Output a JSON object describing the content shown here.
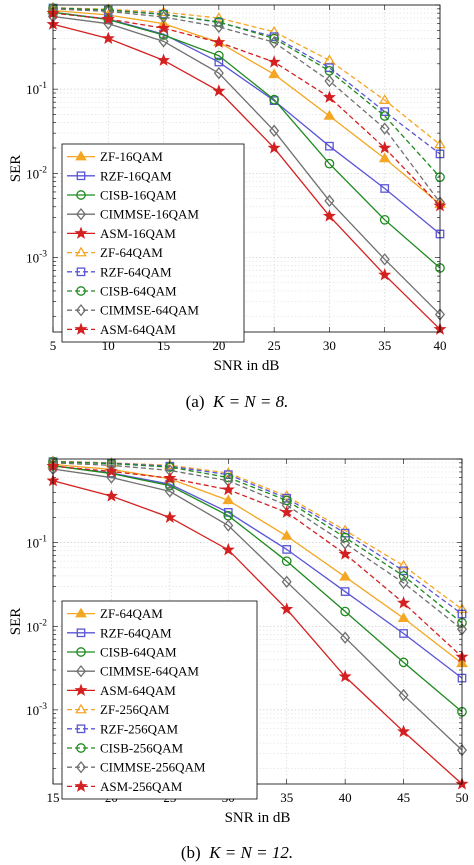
{
  "chart_data": [
    {
      "type": "line",
      "yscale": "log",
      "xlabel": "SNR in dB",
      "ylabel": "SER",
      "x": [
        5,
        10,
        15,
        20,
        25,
        30,
        35,
        40
      ],
      "xlim": [
        5,
        40
      ],
      "ylim": [
        0.00013,
        1
      ],
      "xticks": [
        "5",
        "10",
        "15",
        "20",
        "25",
        "30",
        "35",
        "40"
      ],
      "yticks": [
        {
          "v": 0.1,
          "base": "10",
          "exp": "-1"
        },
        {
          "v": 0.01,
          "base": "10",
          "exp": "-2"
        },
        {
          "v": 0.001,
          "base": "10",
          "exp": "-3"
        }
      ],
      "grid": true,
      "legend_position": "lower-left",
      "caption": {
        "label": "(a)",
        "math": "K = N = 8."
      },
      "series": [
        {
          "name": "ZF-16QAM",
          "color": "#f5a623",
          "dash": false,
          "marker": "triangle",
          "values": [
            0.86,
            0.76,
            0.6,
            0.36,
            0.15,
            0.048,
            0.015,
            0.0043
          ]
        },
        {
          "name": "RZF-16QAM",
          "color": "#5a55d6",
          "dash": false,
          "marker": "square",
          "values": [
            0.82,
            0.68,
            0.45,
            0.21,
            0.073,
            0.021,
            0.0066,
            0.0019
          ]
        },
        {
          "name": "CISB-16QAM",
          "color": "#1e8a1e",
          "dash": false,
          "marker": "circle",
          "values": [
            0.82,
            0.67,
            0.44,
            0.25,
            0.075,
            0.013,
            0.0028,
            0.00075
          ]
        },
        {
          "name": "CIMMSE-16QAM",
          "color": "#707070",
          "dash": false,
          "marker": "diamond",
          "values": [
            0.73,
            0.6,
            0.37,
            0.155,
            0.032,
            0.0047,
            0.00095,
            0.00021
          ]
        },
        {
          "name": "ASM-16QAM",
          "color": "#d42020",
          "dash": false,
          "marker": "star",
          "values": [
            0.59,
            0.4,
            0.22,
            0.095,
            0.02,
            0.0031,
            0.00062,
            0.00014
          ]
        },
        {
          "name": "ZF-64QAM",
          "color": "#f5a623",
          "dash": true,
          "marker": "triangle",
          "values": [
            0.93,
            0.89,
            0.82,
            0.7,
            0.48,
            0.22,
            0.074,
            0.022
          ]
        },
        {
          "name": "RZF-64QAM",
          "color": "#5a55d6",
          "dash": true,
          "marker": "square",
          "values": [
            0.92,
            0.87,
            0.78,
            0.62,
            0.42,
            0.18,
            0.054,
            0.017
          ]
        },
        {
          "name": "CISB-64QAM",
          "color": "#1e8a1e",
          "dash": true,
          "marker": "circle",
          "values": [
            0.92,
            0.87,
            0.77,
            0.63,
            0.4,
            0.165,
            0.048,
            0.009
          ]
        },
        {
          "name": "CIMMSE-64QAM",
          "color": "#707070",
          "dash": true,
          "marker": "diamond",
          "values": [
            0.9,
            0.84,
            0.72,
            0.55,
            0.36,
            0.125,
            0.034,
            0.0045
          ]
        },
        {
          "name": "ASM-64QAM",
          "color": "#d42020",
          "dash": true,
          "marker": "star",
          "values": [
            0.8,
            0.68,
            0.53,
            0.36,
            0.21,
            0.08,
            0.02,
            0.0041
          ]
        }
      ]
    },
    {
      "type": "line",
      "yscale": "log",
      "xlabel": "SNR in dB",
      "ylabel": "SER",
      "x": [
        15,
        20,
        25,
        30,
        35,
        40,
        45,
        50
      ],
      "xlim": [
        15,
        50
      ],
      "ylim": [
        0.00013,
        1
      ],
      "xticks": [
        "15",
        "20",
        "25",
        "30",
        "35",
        "40",
        "45",
        "50"
      ],
      "yticks": [
        {
          "v": 0.1,
          "base": "10",
          "exp": "-1"
        },
        {
          "v": 0.01,
          "base": "10",
          "exp": "-2"
        },
        {
          "v": 0.001,
          "base": "10",
          "exp": "-3"
        }
      ],
      "grid": true,
      "legend_position": "lower-left",
      "caption": {
        "label": "(b)",
        "math": "K = N = 12."
      },
      "series": [
        {
          "name": "ZF-64QAM",
          "color": "#f5a623",
          "dash": false,
          "marker": "triangle",
          "values": [
            0.86,
            0.75,
            0.58,
            0.32,
            0.12,
            0.039,
            0.0125,
            0.0036
          ]
        },
        {
          "name": "RZF-64QAM",
          "color": "#5a55d6",
          "dash": false,
          "marker": "square",
          "values": [
            0.83,
            0.68,
            0.5,
            0.23,
            0.083,
            0.026,
            0.0082,
            0.0024
          ]
        },
        {
          "name": "CISB-64QAM",
          "color": "#1e8a1e",
          "dash": false,
          "marker": "circle",
          "values": [
            0.83,
            0.67,
            0.48,
            0.21,
            0.06,
            0.015,
            0.0037,
            0.00095
          ]
        },
        {
          "name": "CIMMSE-64QAM",
          "color": "#707070",
          "dash": false,
          "marker": "diamond",
          "values": [
            0.76,
            0.6,
            0.41,
            0.16,
            0.034,
            0.0073,
            0.0015,
            0.00033
          ]
        },
        {
          "name": "ASM-64QAM",
          "color": "#d42020",
          "dash": false,
          "marker": "star",
          "values": [
            0.55,
            0.36,
            0.2,
            0.082,
            0.016,
            0.0025,
            0.00055,
            0.00013
          ]
        },
        {
          "name": "ZF-256QAM",
          "color": "#f5a623",
          "dash": true,
          "marker": "triangle",
          "values": [
            0.94,
            0.9,
            0.84,
            0.68,
            0.36,
            0.14,
            0.053,
            0.016
          ]
        },
        {
          "name": "RZF-256QAM",
          "color": "#5a55d6",
          "dash": true,
          "marker": "square",
          "values": [
            0.93,
            0.89,
            0.82,
            0.65,
            0.34,
            0.13,
            0.046,
            0.014
          ]
        },
        {
          "name": "CISB-256QAM",
          "color": "#1e8a1e",
          "dash": true,
          "marker": "circle",
          "values": [
            0.93,
            0.88,
            0.8,
            0.6,
            0.32,
            0.115,
            0.04,
            0.011
          ]
        },
        {
          "name": "CIMMSE-256QAM",
          "color": "#707070",
          "dash": true,
          "marker": "diamond",
          "values": [
            0.9,
            0.84,
            0.73,
            0.55,
            0.28,
            0.098,
            0.033,
            0.0092
          ]
        },
        {
          "name": "ASM-256QAM",
          "color": "#d42020",
          "dash": true,
          "marker": "star",
          "values": [
            0.82,
            0.71,
            0.59,
            0.43,
            0.23,
            0.073,
            0.019,
            0.0043
          ]
        }
      ]
    }
  ]
}
